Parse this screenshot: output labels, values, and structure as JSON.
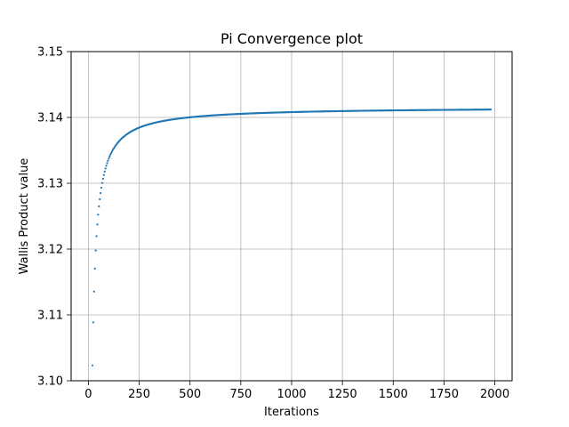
{
  "chart_data": {
    "type": "scatter",
    "title": "Pi Convergence plot",
    "xlabel": "Iterations",
    "ylabel": "Wallis Product value",
    "xlim": [
      -85,
      2085
    ],
    "ylim": [
      3.1,
      3.15
    ],
    "x_ticks": [
      0,
      250,
      500,
      750,
      1000,
      1250,
      1500,
      1750,
      2000
    ],
    "x_tick_labels": [
      "0",
      "250",
      "500",
      "750",
      "1000",
      "1250",
      "1500",
      "1750",
      "2000"
    ],
    "y_ticks": [
      3.1,
      3.11,
      3.12,
      3.13,
      3.14,
      3.15
    ],
    "y_tick_labels": [
      "3.10",
      "3.11",
      "3.12",
      "3.13",
      "3.14",
      "3.15"
    ],
    "grid": true,
    "series": [
      {
        "color": "#1f77b4",
        "x_start": 20,
        "x_end": 1980,
        "x_step": 4,
        "limit": 3.141592653589793,
        "formula": "wallis"
      }
    ]
  }
}
